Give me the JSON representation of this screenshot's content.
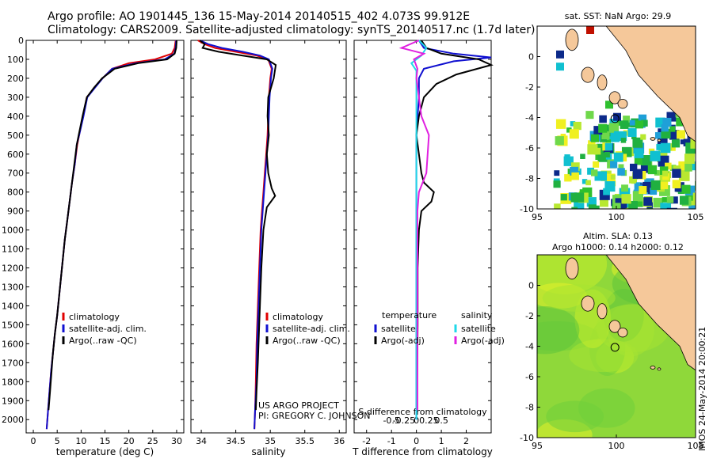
{
  "header": {
    "line1": "Argo profile: AO 1901445_136 15-May-2014 20140515_402 4.073S 99.912E",
    "line2": "Climatology: CARS2009. Satellite-adjusted climatology: synTS_20140517.nc (1.7d later)"
  },
  "credits": {
    "line1": "US ARGO PROJECT",
    "line2": "PI: GREGORY C. JOHNSON"
  },
  "stamp": "IMOS 24-May-2014 20:00:21",
  "colors": {
    "climatology": "#e00000",
    "satellite": "#1010d0",
    "argo": "#000000",
    "satellite_salinity": "#20d8e8",
    "argo_salinity": "#e020e0",
    "land": "#f5c89a"
  },
  "chart_data": [
    {
      "id": "temperature",
      "type": "line",
      "xlabel": "temperature (deg C)",
      "ylabel": "",
      "xlim": [
        -1.5,
        31.5
      ],
      "ylim": [
        2070,
        0
      ],
      "xticks": [
        0,
        5,
        10,
        15,
        20,
        25,
        30
      ],
      "yticks": [
        0,
        100,
        200,
        300,
        400,
        500,
        600,
        700,
        800,
        900,
        1000,
        1100,
        1200,
        1300,
        1400,
        1500,
        1600,
        1700,
        1800,
        1900,
        2000
      ],
      "legend_position": "lower-center",
      "series": [
        {
          "name": "climatology",
          "color": "#e00000",
          "x": [
            29.8,
            29.6,
            29.0,
            25.5,
            20.0,
            16.5,
            14.5,
            12.8,
            11.2,
            10.4,
            9.6,
            9.2,
            8.7,
            8.1,
            7.6,
            7.1,
            6.6,
            6.2,
            5.8,
            5.4,
            5.0,
            4.5,
            4.1,
            3.7,
            3.4,
            3.1,
            2.8
          ],
          "y": [
            0,
            40,
            70,
            100,
            120,
            150,
            200,
            250,
            300,
            400,
            500,
            550,
            650,
            750,
            850,
            950,
            1050,
            1150,
            1250,
            1350,
            1450,
            1550,
            1650,
            1750,
            1850,
            1950,
            2050
          ]
        },
        {
          "name": "satellite-adj. clim.",
          "color": "#1010d0",
          "x": [
            29.9,
            29.8,
            29.5,
            27.5,
            21.5,
            16.5,
            14.5,
            12.9,
            11.3,
            10.5,
            9.6,
            9.1,
            8.7,
            8.1,
            7.6,
            7.1,
            6.6,
            6.2,
            5.8,
            5.4,
            5.0,
            4.5,
            4.1,
            3.7,
            3.4,
            3.1,
            2.8
          ],
          "y": [
            0,
            40,
            70,
            100,
            120,
            150,
            200,
            250,
            300,
            400,
            500,
            550,
            650,
            750,
            850,
            950,
            1050,
            1150,
            1250,
            1350,
            1450,
            1550,
            1650,
            1750,
            1850,
            1950,
            2050
          ]
        },
        {
          "name": "Argo(..raw -QC)",
          "color": "#000000",
          "x": [
            30.0,
            29.9,
            29.6,
            28.0,
            22.0,
            17.0,
            14.4,
            12.7,
            11.2,
            10.3,
            9.5,
            9.1,
            8.6,
            8.1,
            7.6,
            7.1,
            6.6,
            6.2,
            5.8,
            5.4,
            5.0,
            4.5,
            4.1,
            3.8,
            3.5,
            3.2
          ],
          "y": [
            0,
            40,
            70,
            100,
            120,
            150,
            200,
            250,
            300,
            400,
            500,
            550,
            650,
            750,
            850,
            950,
            1050,
            1150,
            1250,
            1350,
            1450,
            1550,
            1650,
            1750,
            1850,
            1950
          ]
        }
      ]
    },
    {
      "id": "salinity",
      "type": "line",
      "xlabel": "salinity",
      "ylabel": "",
      "xlim": [
        33.85,
        36.1
      ],
      "ylim": [
        2070,
        0
      ],
      "xticks": [
        34,
        34.5,
        35,
        35.5,
        36
      ],
      "legend_position": "lower-center",
      "series": [
        {
          "name": "climatology",
          "color": "#e00000",
          "x": [
            33.95,
            34.05,
            34.2,
            34.5,
            34.8,
            34.97,
            35.02,
            35.0,
            34.98,
            34.97,
            34.96,
            34.94,
            34.92,
            34.9,
            34.88,
            34.86,
            34.84,
            34.82,
            34.8,
            34.79,
            34.78,
            34.77
          ],
          "y": [
            0,
            20,
            40,
            60,
            80,
            100,
            150,
            200,
            300,
            400,
            500,
            600,
            700,
            800,
            900,
            1000,
            1200,
            1400,
            1600,
            1800,
            1950,
            2050
          ]
        },
        {
          "name": "satellite-adj. clim.",
          "color": "#1010d0",
          "x": [
            33.98,
            34.1,
            34.3,
            34.6,
            34.85,
            34.98,
            35.03,
            35.01,
            34.99,
            34.98,
            34.97,
            34.95,
            34.93,
            34.91,
            34.89,
            34.87,
            34.85,
            34.83,
            34.81,
            34.8,
            34.78,
            34.77
          ],
          "y": [
            0,
            20,
            40,
            60,
            80,
            100,
            150,
            200,
            300,
            400,
            500,
            600,
            700,
            800,
            900,
            1000,
            1200,
            1400,
            1600,
            1800,
            1950,
            2050
          ]
        },
        {
          "name": "Argo(..raw -QC)",
          "color": "#000000",
          "x": [
            33.98,
            34.05,
            34.02,
            34.25,
            34.6,
            34.95,
            35.08,
            35.05,
            34.97,
            34.96,
            34.98,
            34.95,
            34.97,
            35.02,
            35.07,
            34.95,
            34.9,
            34.87,
            34.84,
            34.82,
            34.8,
            34.79
          ],
          "y": [
            0,
            20,
            40,
            60,
            80,
            100,
            130,
            200,
            300,
            400,
            500,
            600,
            700,
            780,
            820,
            880,
            1000,
            1200,
            1500,
            1700,
            1850,
            1950
          ]
        }
      ]
    },
    {
      "id": "difference",
      "type": "line",
      "xlabel": "T difference from climatology",
      "xlabel2": "S difference from climatology",
      "xlim": [
        -2.5,
        3.0
      ],
      "ylim": [
        2070,
        0
      ],
      "xticks": [
        -2,
        -1,
        0,
        1,
        2
      ],
      "xticks_salinity": [
        -0.5,
        -0.25,
        0,
        0.25,
        0.5
      ],
      "legend_title_left": "temperature",
      "legend_title_right": "salinity",
      "legend_position": "lower-center",
      "series": [
        {
          "name": "satellite",
          "quantity": "temperature",
          "color": "#1010d0",
          "x": [
            0.1,
            0.3,
            1.5,
            3.0,
            1.5,
            0.3,
            0.1,
            0.1,
            0.05,
            0,
            0,
            0,
            0,
            0,
            0,
            0,
            0,
            0,
            0,
            0,
            0
          ],
          "y": [
            0,
            40,
            70,
            90,
            110,
            150,
            200,
            300,
            400,
            500,
            600,
            700,
            800,
            900,
            1000,
            1200,
            1400,
            1600,
            1800,
            1900,
            2000
          ]
        },
        {
          "name": "Argo(-adj)",
          "quantity": "temperature",
          "color": "#000000",
          "x": [
            0.2,
            0.4,
            1.0,
            2.5,
            3.0,
            1.6,
            0.8,
            0.3,
            0.1,
            0,
            0.1,
            0.2,
            0.3,
            0.7,
            0.6,
            0.2,
            0.1,
            0.05,
            0.05,
            0.03,
            0.03
          ],
          "y": [
            0,
            40,
            70,
            100,
            130,
            180,
            230,
            300,
            400,
            500,
            600,
            700,
            750,
            800,
            850,
            900,
            1000,
            1200,
            1500,
            1800,
            1950
          ]
        },
        {
          "name": "satellite",
          "quantity": "salinity",
          "color": "#20d8e8",
          "x": [
            0.05,
            0.2,
            0.1,
            -0.1,
            0,
            0,
            0,
            0,
            0,
            0,
            0,
            0,
            0,
            0,
            0
          ],
          "y": [
            0,
            40,
            80,
            120,
            160,
            200,
            300,
            500,
            700,
            900,
            1100,
            1400,
            1600,
            1800,
            2000
          ]
        },
        {
          "name": "Argo(-adj)",
          "quantity": "salinity",
          "color": "#e020e0",
          "x": [
            0.05,
            -0.3,
            0.15,
            -0.05,
            0.02,
            0,
            0.05,
            0.1,
            0.25,
            0.2,
            0.05,
            0.02,
            0.02,
            0.02,
            0.02,
            0.02
          ],
          "y": [
            0,
            40,
            70,
            100,
            150,
            200,
            300,
            400,
            500,
            700,
            800,
            900,
            1100,
            1400,
            1700,
            1950
          ]
        }
      ]
    },
    {
      "id": "sst-map",
      "type": "heatmap",
      "title": "sat. SST: NaN Argo: 29.9",
      "xlim": [
        95,
        105
      ],
      "ylim": [
        -10,
        2
      ],
      "xticks": [
        95,
        100,
        105
      ],
      "yticks": [
        0,
        -2,
        -4,
        -6,
        -8,
        -10
      ],
      "marker": {
        "lon": 99.912,
        "lat": -4.073
      }
    },
    {
      "id": "sla-map",
      "type": "heatmap",
      "title": "Altim. SLA: 0.13",
      "subtitle": "Argo h1000: 0.14 h2000: 0.12",
      "xlim": [
        95,
        105
      ],
      "ylim": [
        -10,
        2
      ],
      "xticks": [
        95,
        100,
        105
      ],
      "yticks": [
        0,
        -2,
        -4,
        -6,
        -8,
        -10
      ],
      "marker": {
        "lon": 99.912,
        "lat": -4.073
      }
    }
  ]
}
